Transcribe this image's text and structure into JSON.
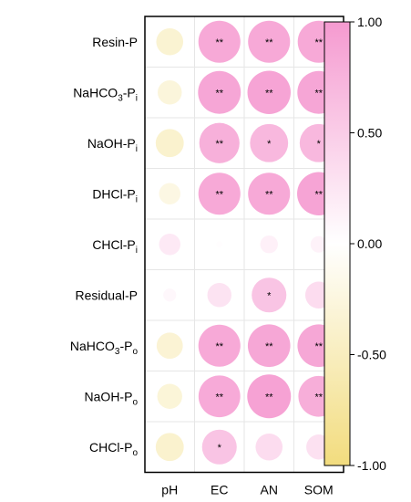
{
  "chart_data": {
    "type": "heatmap",
    "title": "",
    "xlabel": "",
    "ylabel": "",
    "columns": [
      "pH",
      "EC",
      "AN",
      "SOM"
    ],
    "rows": [
      {
        "base": "Resin-P",
        "sub": ""
      },
      {
        "base": "NaHCO",
        "sub3": "3",
        "mid": "-P",
        "sub": "i"
      },
      {
        "base": "NaOH-P",
        "sub": "i"
      },
      {
        "base": "DHCl-P",
        "sub": "i"
      },
      {
        "base": "CHCl-P",
        "sub": "i"
      },
      {
        "base": "Residual-P",
        "sub": ""
      },
      {
        "base": "NaHCO",
        "sub3": "3",
        "mid": "-P",
        "sub": "o"
      },
      {
        "base": "NaOH-P",
        "sub": "o"
      },
      {
        "base": "CHCl-P",
        "sub": "o"
      }
    ],
    "values": [
      [
        -0.35,
        0.85,
        0.85,
        0.85
      ],
      [
        -0.28,
        0.88,
        0.9,
        0.88
      ],
      [
        -0.38,
        0.78,
        0.7,
        0.7
      ],
      [
        -0.22,
        0.85,
        0.85,
        0.9
      ],
      [
        0.22,
        0.02,
        0.15,
        0.13
      ],
      [
        0.08,
        0.28,
        0.58,
        0.35
      ],
      [
        -0.33,
        0.85,
        0.87,
        0.87
      ],
      [
        -0.3,
        0.84,
        0.92,
        0.8
      ],
      [
        -0.38,
        0.58,
        0.35,
        0.3
      ]
    ],
    "significance": [
      [
        "",
        "**",
        "**",
        "**"
      ],
      [
        "",
        "**",
        "**",
        "**"
      ],
      [
        "",
        "**",
        "*",
        "*"
      ],
      [
        "",
        "**",
        "**",
        "**"
      ],
      [
        "",
        "",
        "",
        ""
      ],
      [
        "",
        "",
        "*",
        ""
      ],
      [
        "",
        "**",
        "**",
        "**"
      ],
      [
        "",
        "**",
        "**",
        "**"
      ],
      [
        "",
        "*",
        "",
        ""
      ]
    ],
    "colorbar": {
      "range": [
        -1.0,
        1.0
      ],
      "ticks": [
        "1.00",
        "0.50",
        "0.00",
        "-0.50",
        "-1.00"
      ],
      "tick_values": [
        1.0,
        0.5,
        0.0,
        -0.5,
        -1.0
      ],
      "color_low": "#f2dc7e",
      "color_mid": "#ffffff",
      "color_high": "#f59ad0"
    }
  }
}
